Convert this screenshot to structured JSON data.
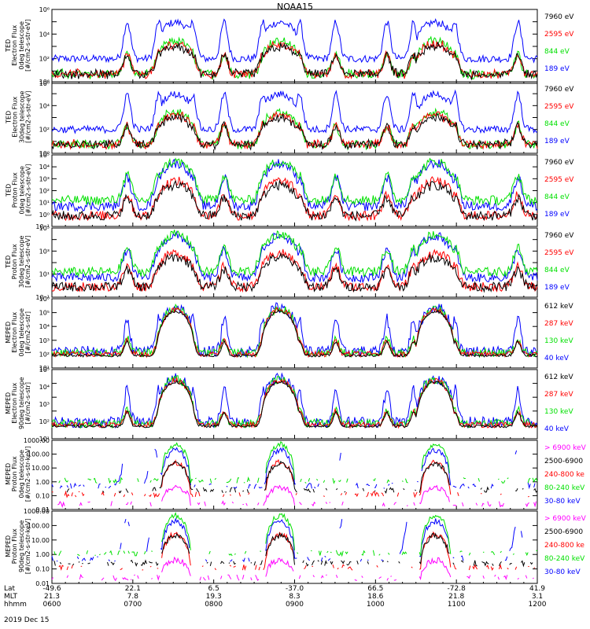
{
  "title": "NOAA15",
  "date": "2019 Dec 15",
  "axis_rows": [
    {
      "name": "Lat",
      "values": [
        "-49.6",
        "22.1",
        "6.5",
        "-37.0",
        "66.5",
        "-72.8",
        "41.9"
      ]
    },
    {
      "name": "MLT",
      "values": [
        "21.3",
        "7.8",
        "19.3",
        "8.3",
        "18.6",
        "21.8",
        "3.1"
      ]
    },
    {
      "name": "hhmm",
      "values": [
        "0600",
        "0700",
        "0800",
        "0900",
        "1000",
        "1100",
        "1200"
      ]
    }
  ],
  "colors": {
    "blue": "#0000ff",
    "red": "#ff0000",
    "green": "#00e000",
    "black": "#000000",
    "magenta": "#ff00ff"
  },
  "chart_data": [
    {
      "type": "line",
      "ylabel": "TED\nElectron Flux\n0deg telescope\n[#/cm2-s-str-eV]",
      "ylim": [
        1,
        1000000
      ],
      "yscale": "log",
      "ytick_labels": [
        "10⁰",
        "10²",
        "10⁴",
        "10⁶"
      ],
      "x": [
        "0600",
        "0700",
        "0800",
        "0900",
        "1000",
        "1100",
        "1200"
      ],
      "series": [
        {
          "name": "7960 eV",
          "color": "black"
        },
        {
          "name": "2595 eV",
          "color": "red"
        },
        {
          "name": "844 eV",
          "color": "green"
        },
        {
          "name": "189 eV",
          "color": "blue"
        }
      ],
      "profile": "ted_e0"
    },
    {
      "type": "line",
      "ylabel": "TED\nElectron Flux\n30deg telescope\n[#/cm2-s-str-eV]",
      "ylim": [
        1,
        1000000
      ],
      "yscale": "log",
      "ytick_labels": [
        "10⁰",
        "10²",
        "10⁴",
        "10⁶"
      ],
      "x": [
        "0600",
        "0700",
        "0800",
        "0900",
        "1000",
        "1100",
        "1200"
      ],
      "series": [
        {
          "name": "7960 eV",
          "color": "black"
        },
        {
          "name": "2595 eV",
          "color": "red"
        },
        {
          "name": "844 eV",
          "color": "green"
        },
        {
          "name": "189 eV",
          "color": "blue"
        }
      ],
      "profile": "ted_e30"
    },
    {
      "type": "line",
      "ylabel": "TED\nProton Flux\n0deg telescope\n[#/cm2-s-str-eV]",
      "ylim": [
        0.1,
        100000
      ],
      "yscale": "log",
      "ytick_labels": [
        "10⁻¹",
        "10⁰",
        "10¹",
        "10²",
        "10³",
        "10⁴",
        "10⁵"
      ],
      "x": [
        "0600",
        "0700",
        "0800",
        "0900",
        "1000",
        "1100",
        "1200"
      ],
      "series": [
        {
          "name": "7960 eV",
          "color": "black"
        },
        {
          "name": "2595 eV",
          "color": "red"
        },
        {
          "name": "844 eV",
          "color": "green"
        },
        {
          "name": "189 eV",
          "color": "blue"
        }
      ],
      "profile": "ted_p0"
    },
    {
      "type": "line",
      "ylabel": "TED\nProton Flux\n30deg telescope\n[#/cm2-s-str-eV]",
      "ylim": [
        0.1,
        100000
      ],
      "yscale": "log",
      "ytick_labels": [
        "10⁻¹",
        "10¹",
        "10³",
        "10⁵"
      ],
      "x": [
        "0600",
        "0700",
        "0800",
        "0900",
        "1000",
        "1100",
        "1200"
      ],
      "series": [
        {
          "name": "7960 eV",
          "color": "black"
        },
        {
          "name": "2595 eV",
          "color": "red"
        },
        {
          "name": "844 eV",
          "color": "green"
        },
        {
          "name": "189 eV",
          "color": "blue"
        }
      ],
      "profile": "ted_p30"
    },
    {
      "type": "line",
      "ylabel": "MEPED\nElectron Flux\n0deg telescope\n[#/cm2-s-str]",
      "ylim": [
        10,
        1000000
      ],
      "yscale": "log",
      "ytick_labels": [
        "10¹",
        "10²",
        "10³",
        "10⁴",
        "10⁵",
        "10⁶"
      ],
      "x": [
        "0600",
        "0700",
        "0800",
        "0900",
        "1000",
        "1100",
        "1200"
      ],
      "series": [
        {
          "name": "612 keV",
          "color": "black"
        },
        {
          "name": "287 keV",
          "color": "red"
        },
        {
          "name": "130 keV",
          "color": "green"
        },
        {
          "name": "40 keV",
          "color": "blue"
        }
      ],
      "profile": "mep_e0"
    },
    {
      "type": "line",
      "ylabel": "MEPED\nElectron Flux\n90deg telescope\n[#/cm2-s-str]",
      "ylim": [
        10,
        1000000
      ],
      "yscale": "log",
      "ytick_labels": [
        "10¹",
        "10²",
        "10³",
        "10⁴",
        "10⁵"
      ],
      "x": [
        "0600",
        "0700",
        "0800",
        "0900",
        "1000",
        "1100",
        "1200"
      ],
      "series": [
        {
          "name": "612 keV",
          "color": "black"
        },
        {
          "name": "287 keV",
          "color": "red"
        },
        {
          "name": "130 keV",
          "color": "green"
        },
        {
          "name": "40 keV",
          "color": "blue"
        }
      ],
      "profile": "mep_e90"
    },
    {
      "type": "line",
      "ylabel": "MEPED\nProton Flux\n0deg telescope\n[#/cm2-s-str-keV]",
      "ylim": [
        0.01,
        1000
      ],
      "yscale": "log",
      "ytick_labels": [
        "0.01",
        "0.10",
        "1.00",
        "10.00",
        "100.00",
        "1000.00"
      ],
      "x": [
        "0600",
        "0700",
        "0800",
        "0900",
        "1000",
        "1100",
        "1200"
      ],
      "series": [
        {
          "name": "> 6900 keV",
          "color": "magenta"
        },
        {
          "name": "2500-6900",
          "color": "black"
        },
        {
          "name": "240-800 ke",
          "color": "red"
        },
        {
          "name": "80-240 keV",
          "color": "green"
        },
        {
          "name": "30-80 keV",
          "color": "blue"
        }
      ],
      "profile": "mep_p0"
    },
    {
      "type": "line",
      "ylabel": "MEPED\nProton Flux\n90deg telescope\n[#/cm2-s-str-keV]",
      "ylim": [
        0.01,
        1000
      ],
      "yscale": "log",
      "ytick_labels": [
        "0.01",
        "0.10",
        "1.00",
        "10.00",
        "100.00",
        "1000.00"
      ],
      "x": [
        "0600",
        "0700",
        "0800",
        "0900",
        "1000",
        "1100",
        "1200"
      ],
      "series": [
        {
          "name": "> 6900 keV",
          "color": "magenta"
        },
        {
          "name": "2500-6900",
          "color": "black"
        },
        {
          "name": "240-800 ke",
          "color": "red"
        },
        {
          "name": "80-240 keV",
          "color": "green"
        },
        {
          "name": "30-80 keV",
          "color": "blue"
        }
      ],
      "profile": "mep_p90"
    }
  ]
}
